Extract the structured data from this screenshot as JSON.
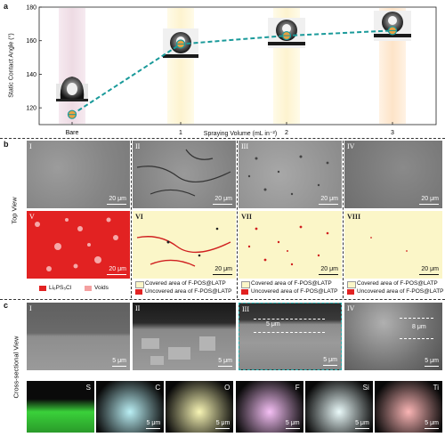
{
  "panel_a": {
    "label": "a",
    "ylabel": "Static Contact Angle (°)",
    "xlabel": "Spraying Volume (mL in⁻²)",
    "chart_data": {
      "type": "line",
      "categories": [
        "Bare",
        "1",
        "2",
        "3"
      ],
      "values": [
        116,
        158,
        163,
        166
      ],
      "ylim": [
        110,
        180
      ],
      "yticks": [
        "120",
        "140",
        "160",
        "180"
      ],
      "xlabel": "Spraying Volume (mL in⁻²)",
      "ylabel": "Static Contact Angle (°)",
      "line_color": "#1a9a9a",
      "marker_color": "#e8a040"
    }
  },
  "panel_b": {
    "label": "b",
    "side_label": "Top View",
    "top_row": [
      {
        "roman": "I",
        "scale": "20 μm"
      },
      {
        "roman": "II",
        "scale": "20 μm"
      },
      {
        "roman": "III",
        "scale": "20 μm"
      },
      {
        "roman": "IV",
        "scale": "20 μm"
      }
    ],
    "bottom_row": [
      {
        "roman": "V",
        "scale": "20 μm"
      },
      {
        "roman": "VI",
        "scale": "20 μm"
      },
      {
        "roman": "VII",
        "scale": "20 μm"
      },
      {
        "roman": "VIII",
        "scale": "20 μm"
      }
    ],
    "legend_v": {
      "a": "Li₆PS₅Cl",
      "b": "Voids"
    },
    "legend_f": {
      "covered": "Covered area of F-POS@LATP",
      "uncovered": "Uncovered area of F-POS@LATP"
    },
    "colors": {
      "red": "#e02020",
      "pink": "#f4a0a0",
      "cream": "#fbf6c8",
      "black": "#111111"
    }
  },
  "panel_c": {
    "label": "c",
    "side_label": "Cross-sectional View",
    "images": [
      {
        "roman": "I",
        "scale": "5 μm"
      },
      {
        "roman": "II",
        "scale": "5 μm"
      },
      {
        "roman": "III",
        "scale": "5 μm",
        "thickness": "5 μm"
      },
      {
        "roman": "IV",
        "scale": "5 μm",
        "thickness": "8 μm"
      }
    ],
    "eds": [
      {
        "element": "S",
        "scale": "",
        "color": "#3ad13a"
      },
      {
        "element": "C",
        "scale": "5 μm",
        "color": "#30d0e0"
      },
      {
        "element": "O",
        "scale": "5 μm",
        "color": "#e8e020"
      },
      {
        "element": "F",
        "scale": "5 μm",
        "color": "#e040e0"
      },
      {
        "element": "Si",
        "scale": "5 μm",
        "color": "#c0f0f0"
      },
      {
        "element": "Ti",
        "scale": "5 μm",
        "color": "#f02020"
      }
    ]
  }
}
